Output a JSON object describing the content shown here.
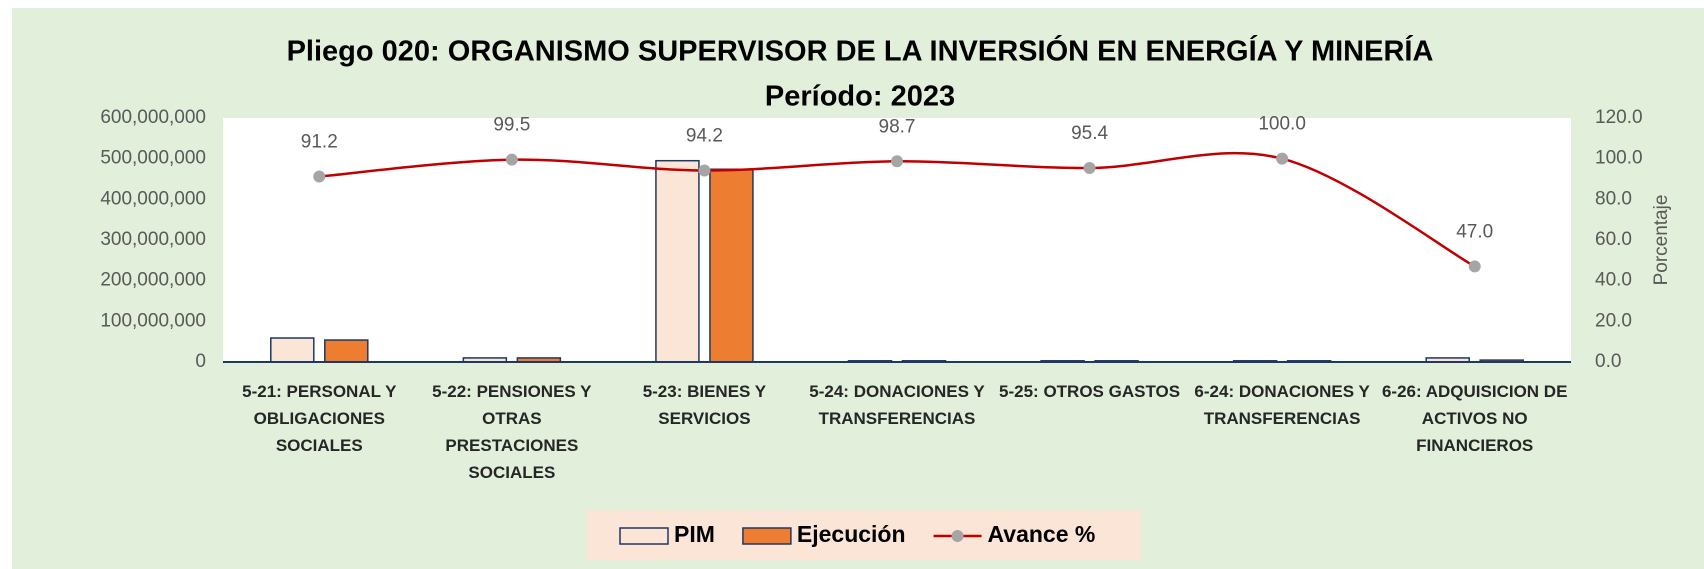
{
  "chart_data": {
    "type": "bar",
    "title": "Pliego 020: ORGANISMO SUPERVISOR DE LA INVERSIÓN EN ENERGÍA Y MINERÍA",
    "subtitle": "Período: 2023",
    "y2_label": "Porcentaje",
    "categories": [
      "5-21: PERSONAL Y OBLIGACIONES SOCIALES",
      "5-22: PENSIONES Y OTRAS PRESTACIONES SOCIALES",
      "5-23: BIENES Y SERVICIOS",
      "5-24: DONACIONES Y TRANSFERENCIAS",
      "5-25: OTROS GASTOS",
      "6-24: DONACIONES Y TRANSFERENCIAS",
      "6-26: ADQUISICION DE ACTIVOS NO FINANCIEROS"
    ],
    "series": [
      {
        "name": "PIM",
        "type": "bar",
        "color": "#fbe5d6",
        "values": [
          59000000,
          10000000,
          495000000,
          3000000,
          3000000,
          3000000,
          10000000
        ]
      },
      {
        "name": "Ejecución",
        "type": "bar",
        "color": "#ed7d31",
        "values": [
          54000000,
          10000000,
          474000000,
          3000000,
          3000000,
          3000000,
          4700000
        ]
      },
      {
        "name": "Avance %",
        "type": "line",
        "axis": "y2",
        "color": "#c00000",
        "values": [
          91.2,
          99.5,
          94.2,
          98.7,
          95.4,
          100,
          47
        ],
        "value_labels": [
          "91.2",
          "99.5",
          "94.2",
          "98.7",
          "95.4",
          "100.0",
          "47.0"
        ]
      }
    ],
    "ylim": [
      0,
      600000000
    ],
    "yticks": [
      0,
      {
        "value": 100000000,
        "label": "100,000,000"
      },
      {
        "value": 200000000,
        "label": "200,000,000"
      },
      {
        "value": 300000000,
        "label": "300,000,000"
      },
      {
        "value": 400000000,
        "label": "400,000,000"
      },
      {
        "value": 500000000,
        "label": "500,000,000"
      },
      {
        "value": 600000000,
        "label": "600,000,000"
      }
    ],
    "y2lim": [
      0,
      120
    ],
    "y2ticks": [
      {
        "value": 0,
        "label": "0.0"
      },
      {
        "value": 20,
        "label": "20.0"
      },
      {
        "value": 40,
        "label": "40.0"
      },
      {
        "value": 60,
        "label": "60.0"
      },
      {
        "value": 80,
        "label": "80.0"
      },
      {
        "value": 100,
        "label": "100.0"
      },
      {
        "value": 120,
        "label": "120.0"
      }
    ],
    "legend": "bottom"
  }
}
